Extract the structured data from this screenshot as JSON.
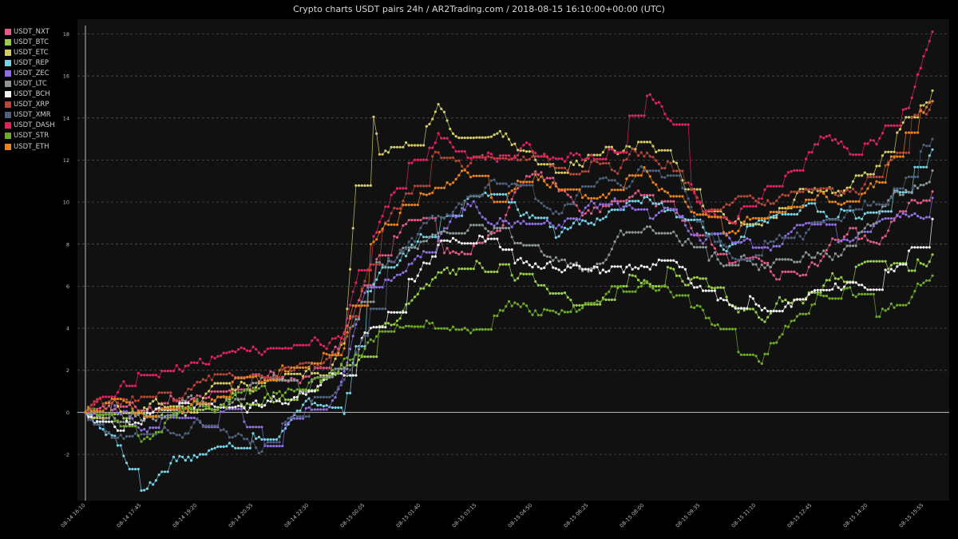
{
  "chart_data": {
    "type": "line",
    "title": "Crypto charts USDT pairs 24h / AR2Trading.com / 2018-08-15 16:10:00+00:00 (UTC)",
    "xlabel": "",
    "ylabel": "",
    "ylim": [
      -4.2,
      18.7
    ],
    "yticks": [
      -2,
      0,
      2,
      4,
      6,
      8,
      10,
      12,
      14,
      16,
      18
    ],
    "xticks": [
      "08-14 16:10",
      "08-14 17:45",
      "08-14 19:20",
      "08-14 20:55",
      "08-14 22:30",
      "08-15 00:05",
      "08-15 01:40",
      "08-15 03:15",
      "08-15 04:50",
      "08-15 06:25",
      "08-15 08:00",
      "08-15 09:35",
      "08-15 11:10",
      "08-15 12:45",
      "08-15 14:20",
      "08-15 15:55"
    ],
    "x_tick_index": [
      0,
      19,
      38,
      57,
      76,
      95,
      114,
      133,
      152,
      171,
      190,
      209,
      228,
      247,
      266,
      285
    ],
    "points_per_series": 289,
    "grid": "horizontal dashed",
    "legend": "top-left",
    "key_points_x": [
      0,
      10,
      20,
      30,
      40,
      50,
      60,
      70,
      80,
      86,
      88,
      95,
      100,
      110,
      120,
      130,
      140,
      150,
      160,
      170,
      180,
      190,
      200,
      210,
      220,
      230,
      240,
      250,
      260,
      270,
      280,
      288
    ],
    "series": [
      {
        "name": "USDT_NXT",
        "color": "#e05a86",
        "values": [
          0,
          0.3,
          -0.2,
          0.5,
          0.8,
          1.4,
          1.5,
          2.0,
          2.2,
          2.8,
          3.5,
          5.5,
          7.0,
          9.2,
          8.0,
          7.5,
          9.0,
          11.0,
          10.5,
          9.5,
          10.0,
          10.3,
          9.5,
          8.0,
          7.5,
          6.8,
          6.5,
          7.0,
          8.5,
          8.0,
          10.0,
          10.5
        ]
      },
      {
        "name": "USDT_BTC",
        "color": "#9acd4a",
        "values": [
          0,
          -0.3,
          -0.5,
          0.0,
          0.2,
          0.6,
          0.8,
          1.0,
          1.4,
          1.8,
          2.0,
          3.0,
          3.8,
          5.5,
          6.3,
          6.8,
          7.0,
          6.5,
          6.0,
          5.3,
          5.5,
          6.5,
          6.8,
          6.0,
          5.0,
          4.8,
          5.5,
          6.0,
          6.3,
          6.8,
          6.8,
          7.5
        ]
      },
      {
        "name": "USDT_ETC",
        "color": "#d4cc66",
        "values": [
          0,
          0.3,
          0.0,
          0.5,
          0.6,
          1.0,
          1.2,
          1.8,
          2.0,
          2.5,
          3.0,
          15.8,
          12.0,
          13.0,
          14.5,
          12.5,
          13.0,
          12.5,
          11.5,
          12.0,
          12.5,
          13.0,
          11.5,
          9.5,
          9.0,
          9.5,
          10.5,
          11.0,
          10.5,
          12.0,
          14.5,
          15.3
        ]
      },
      {
        "name": "USDT_REP",
        "color": "#76d2e4",
        "values": [
          0,
          -1.5,
          -3.5,
          -2.5,
          -2.3,
          -1.8,
          -1.5,
          -0.5,
          0,
          0,
          0,
          5.5,
          6.5,
          7.5,
          9.0,
          10.5,
          10.0,
          9.5,
          8.5,
          9.0,
          9.5,
          10.0,
          9.0,
          8.5,
          8.0,
          9.0,
          9.5,
          9.5,
          10.0,
          9.5,
          11.0,
          12.5
        ]
      },
      {
        "name": "USDT_ZEC",
        "color": "#8e6ee0",
        "values": [
          0,
          0.5,
          -1.0,
          -0.5,
          -0.3,
          0.0,
          -1.2,
          -0.3,
          0.5,
          1.5,
          2.0,
          6.0,
          6.5,
          7.0,
          8.5,
          10.0,
          9.5,
          9.0,
          8.5,
          9.5,
          10.0,
          9.5,
          9.0,
          8.0,
          8.0,
          7.5,
          8.5,
          9.0,
          8.0,
          9.5,
          10.0,
          10.2
        ]
      },
      {
        "name": "USDT_LTC",
        "color": "#8c9699",
        "values": [
          0,
          0.0,
          -0.3,
          0.2,
          0.5,
          0.8,
          1.0,
          1.3,
          1.5,
          2.0,
          2.5,
          5.5,
          7.0,
          7.5,
          8.5,
          9.0,
          8.8,
          8.0,
          7.5,
          7.0,
          8.0,
          9.0,
          8.5,
          7.5,
          7.0,
          7.0,
          7.5,
          7.5,
          8.0,
          9.5,
          10.5,
          11.5
        ]
      },
      {
        "name": "USDT_BCH",
        "color": "#f2f2f2",
        "values": [
          0,
          -0.5,
          -0.3,
          0.0,
          0.3,
          0.8,
          0.5,
          0.8,
          1.5,
          1.8,
          2.0,
          4.0,
          5.0,
          6.0,
          7.5,
          8.0,
          7.5,
          7.5,
          7.0,
          6.5,
          6.5,
          7.0,
          7.0,
          5.5,
          5.0,
          4.8,
          5.3,
          5.5,
          6.0,
          6.5,
          7.5,
          9.2
        ]
      },
      {
        "name": "USDT_XRP",
        "color": "#b4473a",
        "values": [
          0,
          0.5,
          0.8,
          1.2,
          1.3,
          1.8,
          2.0,
          2.2,
          2.5,
          3.0,
          3.5,
          6.0,
          8.5,
          10.5,
          12.5,
          12.0,
          12.5,
          12.0,
          11.5,
          12.0,
          12.0,
          12.5,
          11.5,
          9.5,
          9.5,
          10.0,
          10.5,
          11.0,
          10.5,
          11.5,
          14.0,
          14.8
        ]
      },
      {
        "name": "USDT_XMR",
        "color": "#50607a",
        "values": [
          0,
          -0.8,
          -0.5,
          -1.2,
          -0.8,
          -1.5,
          -1.8,
          -0.5,
          0.5,
          1.0,
          1.5,
          4.0,
          6.5,
          8.0,
          9.0,
          10.5,
          10.8,
          10.5,
          10.0,
          10.5,
          11.0,
          11.5,
          10.5,
          8.5,
          7.5,
          7.5,
          8.5,
          9.0,
          9.5,
          9.5,
          11.5,
          13.0
        ]
      },
      {
        "name": "USDT_DASH",
        "color": "#e0245e",
        "values": [
          0,
          0.8,
          1.5,
          2.0,
          2.5,
          2.8,
          3.3,
          3.0,
          3.2,
          3.5,
          3.8,
          7.5,
          9.0,
          11.5,
          13.5,
          12.5,
          12.0,
          13.0,
          12.0,
          12.0,
          12.5,
          15.0,
          13.5,
          9.5,
          9.5,
          10.5,
          11.5,
          12.8,
          12.5,
          13.0,
          14.5,
          18.1
        ]
      },
      {
        "name": "USDT_STR",
        "color": "#6fa82a",
        "values": [
          0,
          -0.5,
          -1.2,
          -0.3,
          0.2,
          0.5,
          1.0,
          0.8,
          1.2,
          1.5,
          2.0,
          3.0,
          3.5,
          4.0,
          3.8,
          3.5,
          4.5,
          5.0,
          4.5,
          4.8,
          5.5,
          6.5,
          6.0,
          5.0,
          3.0,
          2.5,
          4.5,
          6.0,
          5.5,
          5.0,
          5.5,
          6.5
        ]
      },
      {
        "name": "USDT_ETH",
        "color": "#e8821f",
        "values": [
          0,
          0.2,
          0.0,
          0.6,
          0.8,
          1.5,
          1.2,
          1.8,
          2.2,
          2.6,
          3.0,
          7.5,
          8.5,
          10.5,
          11.0,
          11.0,
          10.0,
          11.5,
          11.0,
          10.0,
          10.5,
          11.0,
          10.5,
          9.0,
          8.5,
          9.5,
          10.0,
          10.5,
          10.0,
          11.0,
          13.5,
          14.8
        ]
      }
    ]
  }
}
